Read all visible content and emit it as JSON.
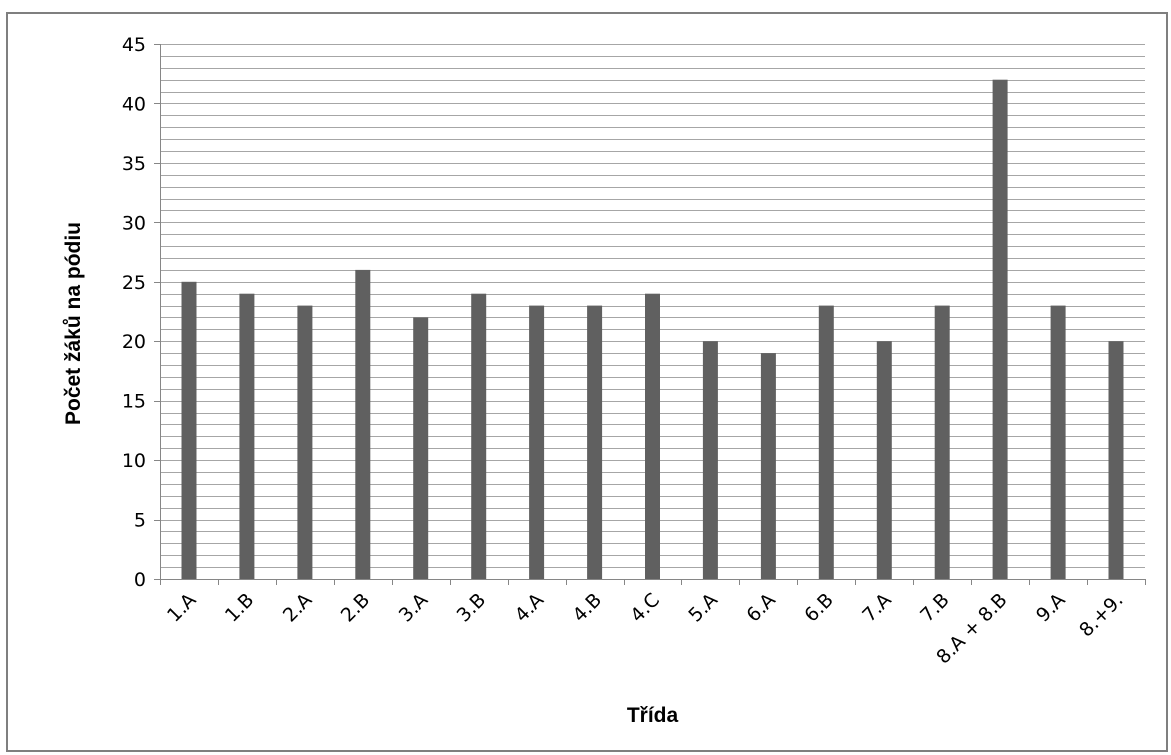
{
  "chart_data": {
    "type": "bar",
    "title": "",
    "xlabel": "Třída",
    "ylabel": "Počet žáků na pódiu",
    "categories": [
      "1.A",
      "1.B",
      "2.A",
      "2.B",
      "3.A",
      "3.B",
      "4.A",
      "4.B",
      "4.C",
      "5.A",
      "6.A",
      "6.B",
      "7.A",
      "7.B",
      "8.A + 8.B",
      "9.A",
      "8.+9."
    ],
    "values": [
      25,
      24,
      23,
      26,
      22,
      24,
      23,
      23,
      24,
      20,
      19,
      23,
      20,
      23,
      42,
      23,
      20
    ],
    "ylim": [
      0,
      45
    ],
    "yticks": [
      0,
      5,
      10,
      15,
      20,
      25,
      30,
      35,
      40,
      45
    ],
    "minor_grid_step": 1,
    "grid": true,
    "legend": "none",
    "bar_color": "#606060",
    "grid_color": "#a6a6a6"
  }
}
